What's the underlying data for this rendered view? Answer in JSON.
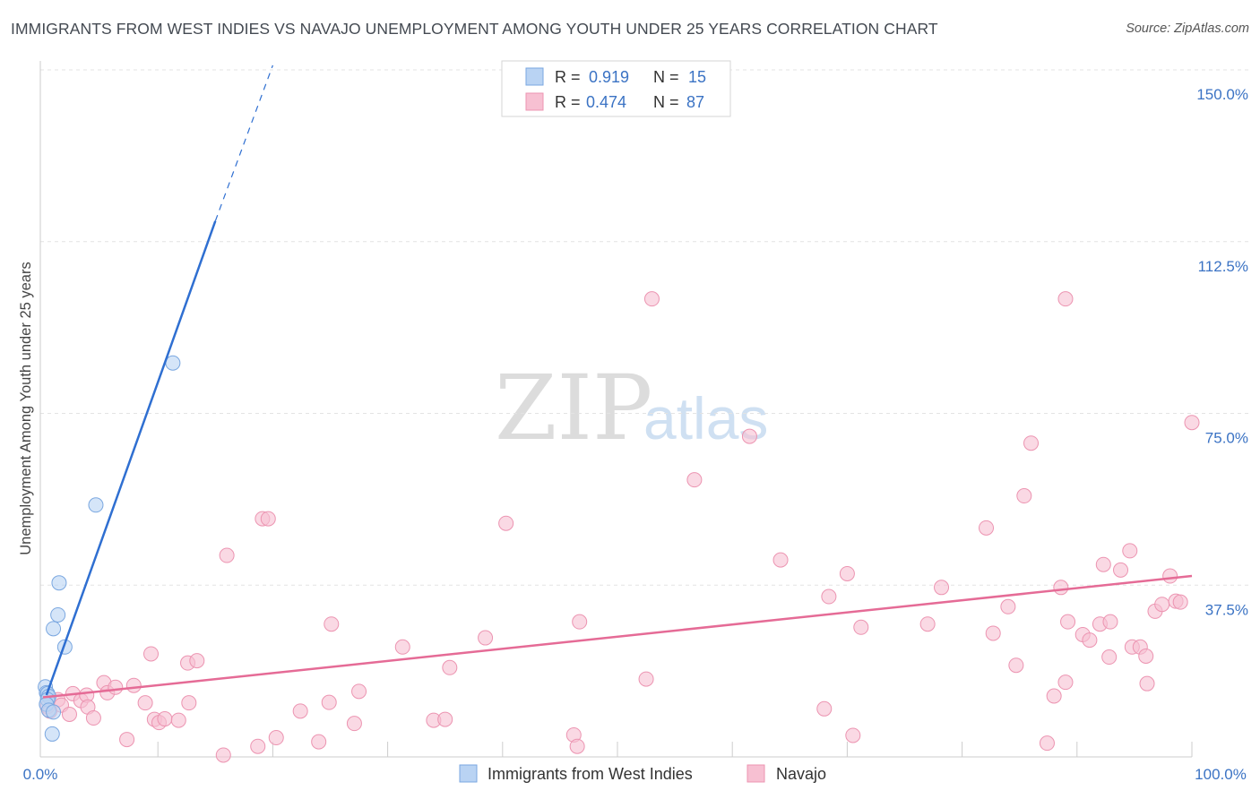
{
  "header": {
    "title": "IMMIGRANTS FROM WEST INDIES VS NAVAJO UNEMPLOYMENT AMONG YOUTH UNDER 25 YEARS CORRELATION CHART",
    "source": "Source: ZipAtlas.com"
  },
  "watermark": {
    "zip": "ZIP",
    "atlas": "atlas"
  },
  "colors": {
    "blue_fill": "#b9d3f3",
    "blue_stroke": "#7aa7e0",
    "blue_line": "#2f6fd1",
    "pink_fill": "#f7c0d2",
    "pink_stroke": "#ec94b1",
    "pink_line": "#e56b96",
    "grid": "#e3e3e3",
    "label_blue": "#3b73c4"
  },
  "stats": [
    {
      "r_label": "R =",
      "r_value": "0.919",
      "n_label": "N =",
      "n_value": "15"
    },
    {
      "r_label": "R =",
      "r_value": "0.474",
      "n_label": "N =",
      "n_value": "87"
    }
  ],
  "legend": {
    "series1": "Immigrants from West Indies",
    "series2": "Navajo"
  },
  "chart_data": {
    "type": "scatter",
    "title": "IMMIGRANTS FROM WEST INDIES VS NAVAJO UNEMPLOYMENT AMONG YOUTH UNDER 25 YEARS CORRELATION CHART",
    "xlabel": "",
    "ylabel": "Unemployment Among Youth under 25 years",
    "xlim": [
      0,
      100
    ],
    "ylim": [
      0,
      155
    ],
    "x_tick_labels": [
      "0.0%",
      "100.0%"
    ],
    "y_ticks": [
      37.5,
      75.0,
      112.5,
      150.0
    ],
    "y_tick_labels": [
      "37.5%",
      "75.0%",
      "112.5%",
      "150.0%"
    ],
    "grid": true,
    "series": [
      {
        "name": "Immigrants from West Indies",
        "r": 0.919,
        "n": 15,
        "trend": {
          "x0": 0.3,
          "y0": 13.5,
          "x1": 15.0,
          "y1": 117.0,
          "dash_to_x": 20.0,
          "dash_to_y": 151.0
        },
        "points": [
          [
            0.2,
            15.3
          ],
          [
            0.3,
            14.0
          ],
          [
            0.4,
            13.8
          ],
          [
            0.5,
            13.2
          ],
          [
            0.4,
            12.5
          ],
          [
            0.3,
            11.5
          ],
          [
            0.5,
            10.2
          ],
          [
            0.9,
            9.8
          ],
          [
            0.8,
            5.0
          ],
          [
            0.9,
            28.0
          ],
          [
            1.3,
            31.0
          ],
          [
            1.4,
            38.0
          ],
          [
            1.9,
            24.0
          ],
          [
            4.6,
            55.0
          ],
          [
            11.3,
            86.0
          ]
        ]
      },
      {
        "name": "Navajo",
        "r": 0.474,
        "n": 87,
        "trend": {
          "x0": 0,
          "y0": 13.0,
          "x1": 100,
          "y1": 39.5
        },
        "points": [
          [
            0.4,
            11.0
          ],
          [
            0.6,
            10.0
          ],
          [
            1.3,
            12.5
          ],
          [
            1.6,
            11.3
          ],
          [
            2.3,
            9.3
          ],
          [
            2.6,
            13.8
          ],
          [
            3.3,
            12.3
          ],
          [
            3.8,
            13.5
          ],
          [
            3.9,
            10.9
          ],
          [
            4.4,
            8.5
          ],
          [
            5.3,
            16.2
          ],
          [
            5.6,
            14.0
          ],
          [
            6.3,
            15.2
          ],
          [
            7.3,
            3.8
          ],
          [
            7.9,
            15.6
          ],
          [
            8.9,
            11.8
          ],
          [
            9.4,
            22.5
          ],
          [
            9.7,
            8.2
          ],
          [
            10.1,
            7.5
          ],
          [
            10.6,
            8.3
          ],
          [
            11.8,
            8.0
          ],
          [
            12.6,
            20.5
          ],
          [
            12.7,
            11.8
          ],
          [
            13.4,
            21.0
          ],
          [
            15.7,
            0.4
          ],
          [
            16.0,
            44.0
          ],
          [
            18.7,
            2.3
          ],
          [
            19.1,
            52.0
          ],
          [
            19.6,
            52.0
          ],
          [
            20.3,
            4.2
          ],
          [
            22.4,
            10.0
          ],
          [
            24.0,
            3.3
          ],
          [
            24.9,
            11.9
          ],
          [
            25.1,
            29.0
          ],
          [
            27.1,
            7.3
          ],
          [
            27.5,
            14.3
          ],
          [
            31.3,
            24.0
          ],
          [
            34.0,
            8.0
          ],
          [
            35.0,
            8.2
          ],
          [
            35.4,
            19.5
          ],
          [
            38.5,
            26.0
          ],
          [
            40.3,
            51.0
          ],
          [
            46.2,
            4.8
          ],
          [
            46.5,
            2.3
          ],
          [
            46.7,
            29.5
          ],
          [
            52.5,
            17.0
          ],
          [
            53.0,
            100.0
          ],
          [
            56.7,
            60.5
          ],
          [
            61.5,
            70.0
          ],
          [
            64.2,
            43.0
          ],
          [
            68.0,
            10.5
          ],
          [
            68.4,
            35.0
          ],
          [
            70.0,
            40.0
          ],
          [
            70.5,
            4.7
          ],
          [
            71.2,
            28.3
          ],
          [
            77.0,
            29.0
          ],
          [
            78.2,
            37.0
          ],
          [
            82.1,
            50.0
          ],
          [
            82.7,
            27.0
          ],
          [
            84.0,
            32.8
          ],
          [
            84.7,
            20.0
          ],
          [
            85.4,
            57.0
          ],
          [
            86.0,
            68.5
          ],
          [
            87.4,
            3.0
          ],
          [
            88.0,
            13.3
          ],
          [
            88.6,
            37.0
          ],
          [
            89.0,
            16.3
          ],
          [
            89.0,
            100.0
          ],
          [
            89.2,
            29.5
          ],
          [
            90.5,
            26.7
          ],
          [
            91.1,
            25.5
          ],
          [
            92.0,
            29.0
          ],
          [
            92.3,
            42.0
          ],
          [
            92.8,
            21.8
          ],
          [
            92.9,
            29.5
          ],
          [
            93.8,
            40.8
          ],
          [
            94.6,
            45.0
          ],
          [
            94.8,
            24.0
          ],
          [
            95.5,
            24.0
          ],
          [
            96.0,
            22.0
          ],
          [
            96.1,
            16.0
          ],
          [
            96.8,
            31.8
          ],
          [
            97.4,
            33.3
          ],
          [
            98.1,
            39.5
          ],
          [
            98.6,
            34.0
          ],
          [
            99.0,
            33.8
          ],
          [
            100.0,
            73.0
          ]
        ]
      }
    ]
  }
}
